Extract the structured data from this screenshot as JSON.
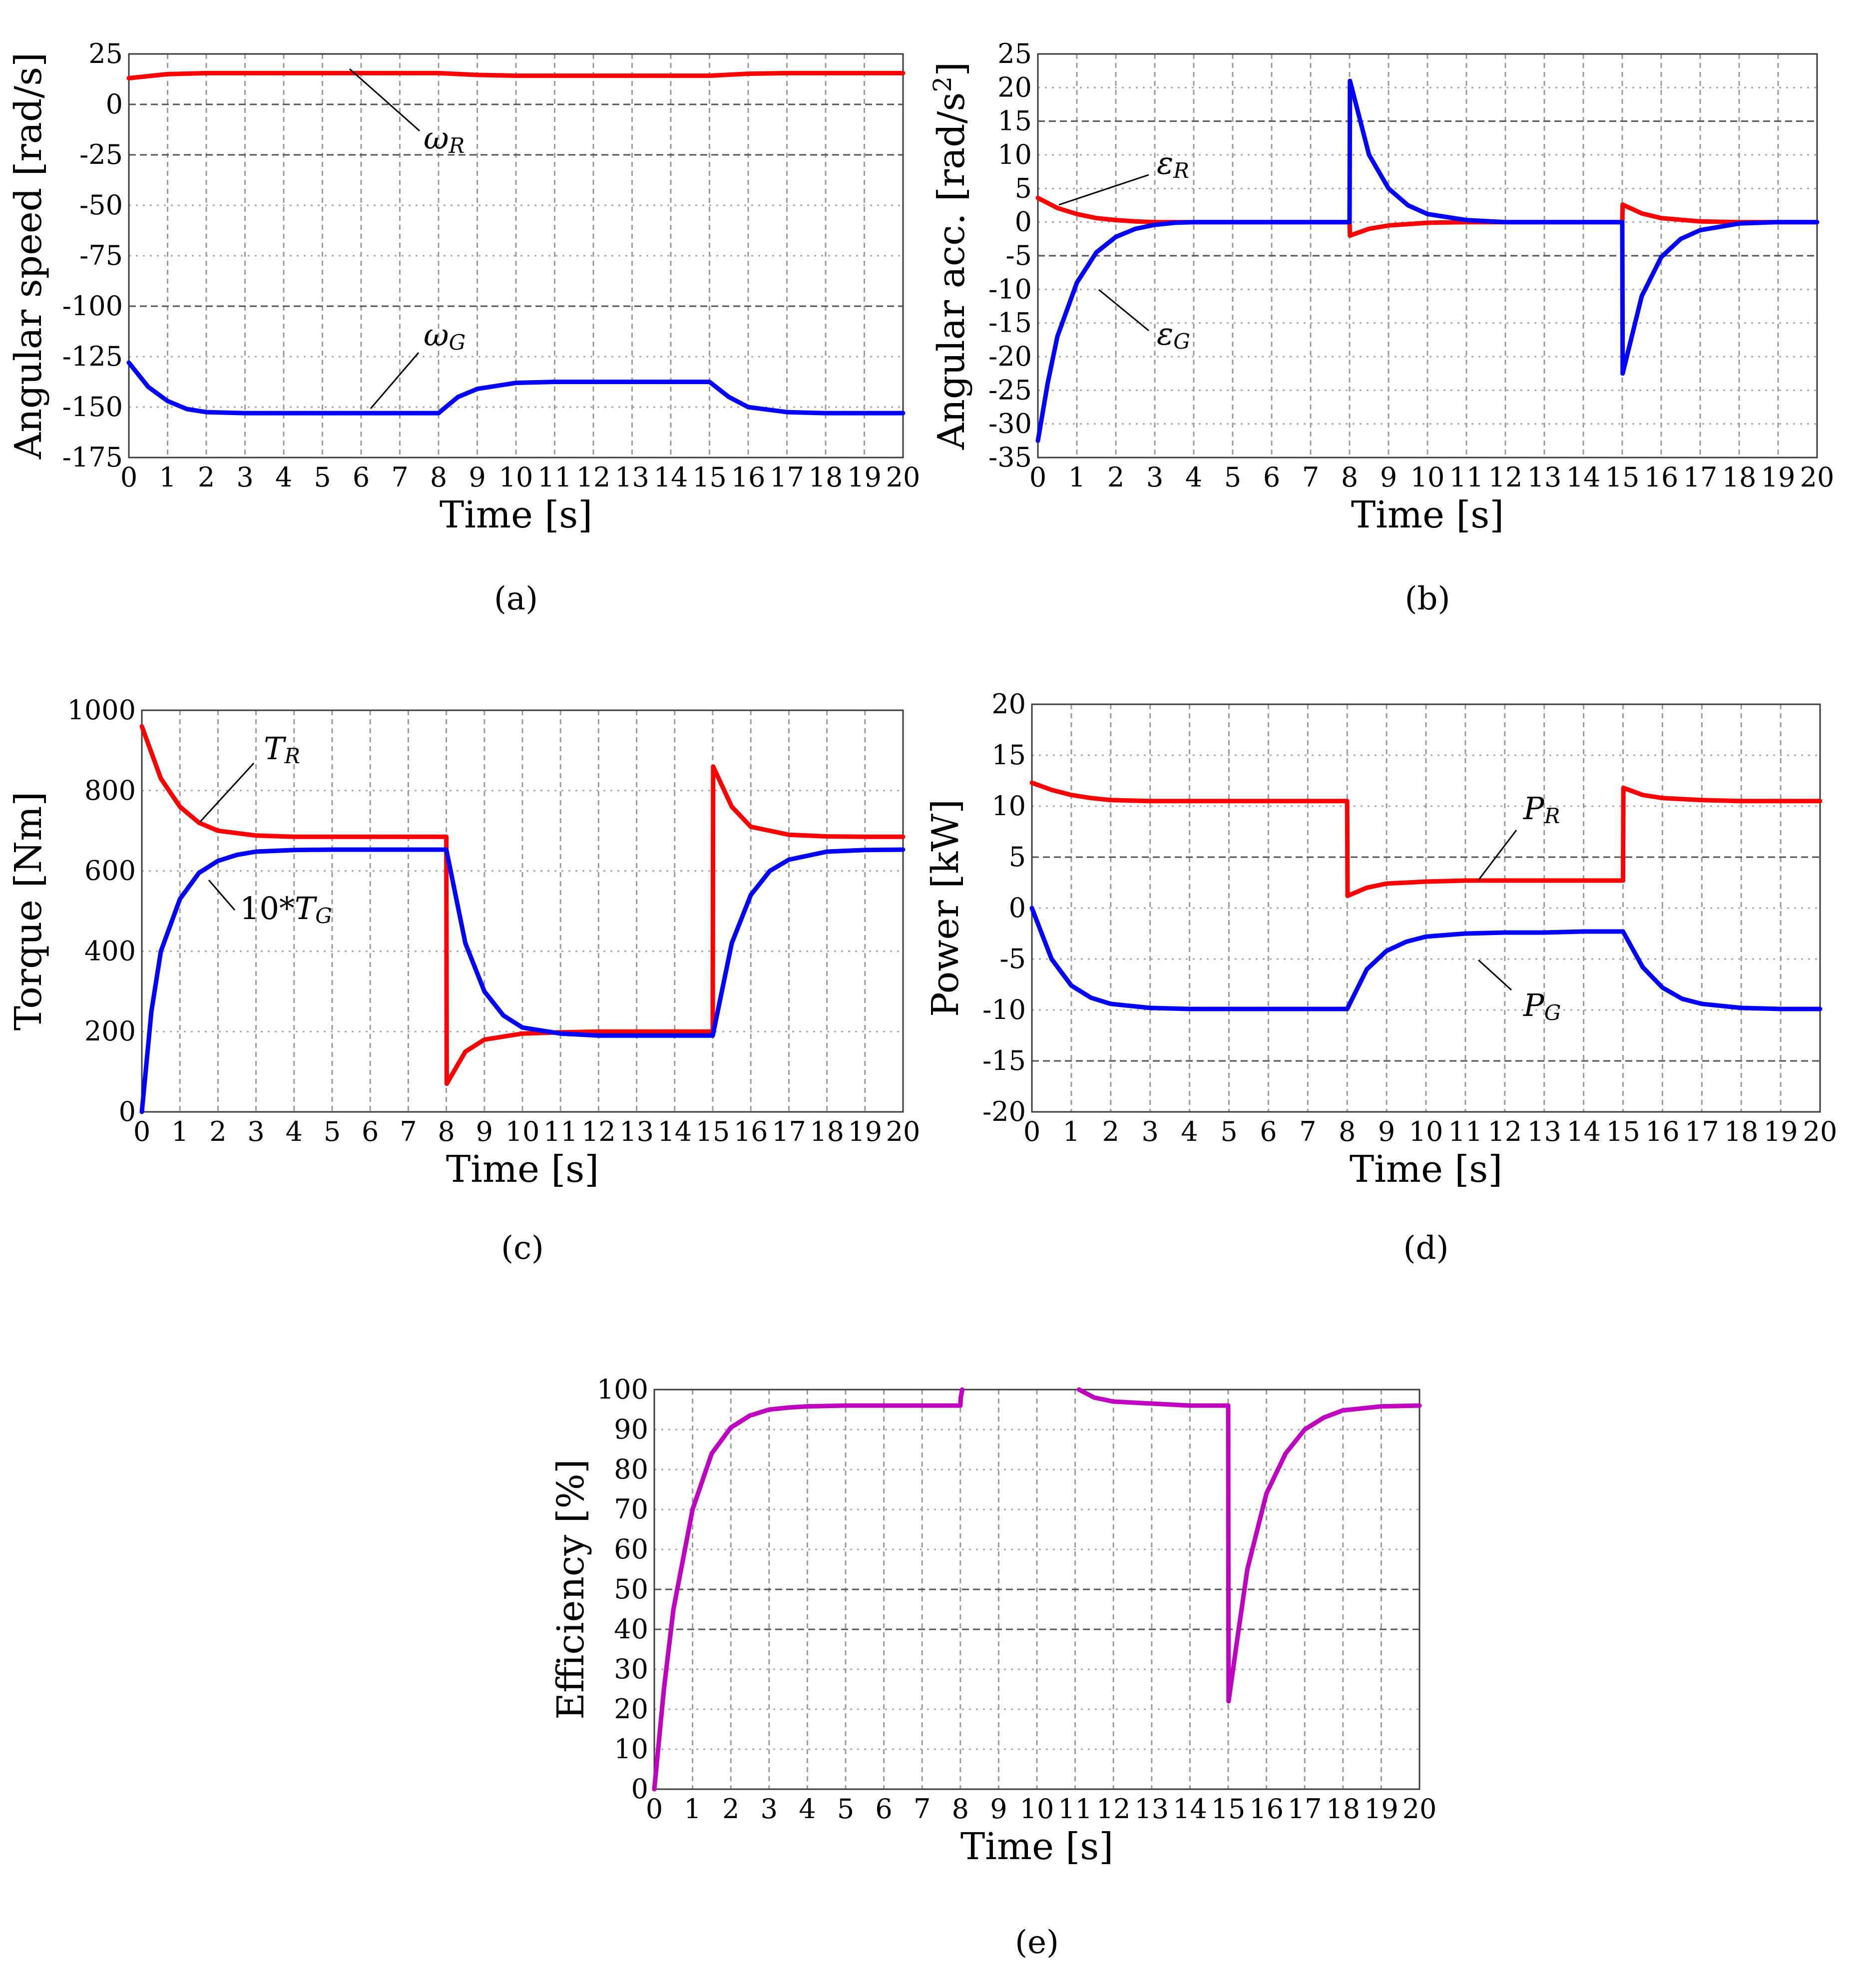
{
  "figure": {
    "panels": [
      "a",
      "b",
      "c",
      "d",
      "e"
    ]
  },
  "chart_data": [
    {
      "id": "a",
      "type": "line",
      "caption": "(a)",
      "xlabel": "Time [s]",
      "ylabel": "Angular speed [rad/s]",
      "xlim": [
        0,
        20
      ],
      "ylim": [
        -175,
        25
      ],
      "xticks": [
        0,
        1,
        2,
        3,
        4,
        5,
        6,
        7,
        8,
        9,
        10,
        11,
        12,
        13,
        14,
        15,
        16,
        17,
        18,
        19,
        20
      ],
      "yticks": [
        25,
        0,
        -25,
        -50,
        -75,
        -100,
        -125,
        -150,
        -175
      ],
      "grid": true,
      "series": [
        {
          "name": "ωR",
          "color": "#ff0000",
          "x": [
            0,
            1,
            2,
            3,
            4,
            5,
            6,
            7,
            8,
            9,
            10,
            11,
            12,
            13,
            14,
            15,
            16,
            17,
            18,
            19,
            20
          ],
          "y": [
            13,
            15,
            15.5,
            15.5,
            15.5,
            15.5,
            15.5,
            15.5,
            15.5,
            14.6,
            14.2,
            14.2,
            14.2,
            14.2,
            14.2,
            14.2,
            15.2,
            15.5,
            15.5,
            15.5,
            15.5
          ]
        },
        {
          "name": "ωG",
          "color": "#0000ff",
          "x": [
            0,
            0.5,
            1,
            1.5,
            2,
            3,
            4,
            5,
            6,
            7,
            8,
            8.5,
            9,
            10,
            11,
            12,
            13,
            14,
            15,
            15.5,
            16,
            17,
            18,
            19,
            20
          ],
          "y": [
            -128,
            -140,
            -147,
            -151,
            -152.5,
            -153,
            -153,
            -153,
            -153,
            -153,
            -153,
            -145,
            -141,
            -138,
            -137.5,
            -137.5,
            -137.5,
            -137.5,
            -137.5,
            -145,
            -150,
            -152.5,
            -153,
            -153,
            -153
          ]
        }
      ],
      "annotations": [
        {
          "main": "ω",
          "sub": "R"
        },
        {
          "main": "ω",
          "sub": "G"
        }
      ]
    },
    {
      "id": "b",
      "type": "line",
      "caption": "(b)",
      "xlabel": "Time [s]",
      "ylabel": "Angular acc. [rad/s",
      "ylabel_sup": "2",
      "ylabel_end": "]",
      "xlim": [
        0,
        20
      ],
      "ylim": [
        -35,
        25
      ],
      "xticks": [
        0,
        1,
        2,
        3,
        4,
        5,
        6,
        7,
        8,
        9,
        10,
        11,
        12,
        13,
        14,
        15,
        16,
        17,
        18,
        19,
        20
      ],
      "yticks": [
        25,
        20,
        15,
        10,
        5,
        0,
        -5,
        -10,
        -15,
        -20,
        -25,
        -30,
        -35
      ],
      "grid": true,
      "series": [
        {
          "name": "εR",
          "color": "#ff0000",
          "x": [
            0,
            0.5,
            1,
            1.5,
            2,
            2.5,
            3,
            8,
            8.01,
            8.5,
            9,
            10,
            11,
            15,
            15.01,
            15.5,
            16,
            17,
            18,
            20
          ],
          "y": [
            3.6,
            2.1,
            1.2,
            0.6,
            0.3,
            0.1,
            0,
            0,
            -2,
            -1,
            -0.5,
            -0.1,
            0,
            0,
            2.6,
            1.3,
            0.6,
            0.1,
            0,
            0
          ]
        },
        {
          "name": "εG",
          "color": "#0000ff",
          "x": [
            0,
            0.25,
            0.5,
            1,
            1.5,
            2,
            2.5,
            3,
            3.5,
            4,
            8,
            8.01,
            8.5,
            9,
            9.5,
            10,
            11,
            12,
            15,
            15.01,
            15.5,
            16,
            16.5,
            17,
            18,
            19,
            20
          ],
          "y": [
            -32.5,
            -24,
            -17,
            -9,
            -4.5,
            -2.2,
            -1,
            -0.4,
            -0.1,
            0,
            0,
            21,
            10,
            5,
            2.5,
            1.2,
            0.3,
            0,
            0,
            -22.5,
            -11,
            -5.2,
            -2.5,
            -1.2,
            -0.2,
            0,
            0
          ]
        }
      ],
      "annotations": [
        {
          "main": "ε",
          "sub": "R"
        },
        {
          "main": "ε",
          "sub": "G"
        }
      ]
    },
    {
      "id": "c",
      "type": "line",
      "caption": "(c)",
      "xlabel": "Time [s]",
      "ylabel": "Torque [Nm]",
      "xlim": [
        0,
        20
      ],
      "ylim": [
        0,
        1000
      ],
      "xticks": [
        0,
        1,
        2,
        3,
        4,
        5,
        6,
        7,
        8,
        9,
        10,
        11,
        12,
        13,
        14,
        15,
        16,
        17,
        18,
        19,
        20
      ],
      "yticks": [
        1000,
        800,
        600,
        400,
        200,
        0
      ],
      "grid": true,
      "series": [
        {
          "name": "TR",
          "color": "#ff0000",
          "x": [
            0,
            0.5,
            1,
            1.5,
            2,
            3,
            4,
            5,
            6,
            7,
            8,
            8.01,
            8.5,
            9,
            10,
            11,
            12,
            13,
            14,
            15,
            15.01,
            15.5,
            16,
            17,
            18,
            19,
            20
          ],
          "y": [
            960,
            830,
            760,
            720,
            700,
            688,
            685,
            685,
            685,
            685,
            685,
            70,
            150,
            180,
            195,
            198,
            200,
            200,
            200,
            200,
            860,
            760,
            710,
            690,
            686,
            685,
            685
          ]
        },
        {
          "name": "10*TG",
          "color": "#0000ff",
          "x": [
            0,
            0.25,
            0.5,
            1,
            1.5,
            2,
            2.5,
            3,
            4,
            5,
            6,
            7,
            8,
            8.5,
            9,
            9.5,
            10,
            11,
            12,
            13,
            14,
            15,
            15.5,
            16,
            16.5,
            17,
            18,
            19,
            20
          ],
          "y": [
            0,
            250,
            400,
            530,
            595,
            625,
            640,
            648,
            652,
            653,
            653,
            653,
            653,
            420,
            300,
            240,
            210,
            195,
            190,
            190,
            190,
            190,
            420,
            540,
            600,
            628,
            648,
            652,
            653
          ]
        }
      ],
      "annotations": [
        {
          "main": "T",
          "sub": "R",
          "prefix": ""
        },
        {
          "main": "T",
          "sub": "G",
          "prefix": "10*"
        }
      ]
    },
    {
      "id": "d",
      "type": "line",
      "caption": "(d)",
      "xlabel": "Time [s]",
      "ylabel": "Power [kW]",
      "xlim": [
        0,
        20
      ],
      "ylim": [
        -20,
        20
      ],
      "xticks": [
        0,
        1,
        2,
        3,
        4,
        5,
        6,
        7,
        8,
        9,
        10,
        11,
        12,
        13,
        14,
        15,
        16,
        17,
        18,
        19,
        20
      ],
      "yticks": [
        20,
        15,
        10,
        5,
        0,
        -5,
        -10,
        -15,
        -20
      ],
      "grid": true,
      "series": [
        {
          "name": "PR",
          "color": "#ff0000",
          "x": [
            0,
            0.5,
            1,
            1.5,
            2,
            3,
            4,
            5,
            6,
            7,
            8,
            8.01,
            8.5,
            9,
            10,
            11,
            12,
            13,
            14,
            15,
            15.01,
            15.5,
            16,
            17,
            18,
            19,
            20
          ],
          "y": [
            12.3,
            11.6,
            11.1,
            10.8,
            10.6,
            10.5,
            10.5,
            10.5,
            10.5,
            10.5,
            10.5,
            1.2,
            2,
            2.4,
            2.6,
            2.7,
            2.7,
            2.7,
            2.7,
            2.7,
            11.8,
            11.1,
            10.8,
            10.6,
            10.5,
            10.5,
            10.5
          ]
        },
        {
          "name": "PG",
          "color": "#0000ff",
          "x": [
            0,
            0.5,
            1,
            1.5,
            2,
            3,
            4,
            5,
            6,
            7,
            8,
            8.5,
            9,
            9.5,
            10,
            11,
            12,
            13,
            14,
            15,
            15.5,
            16,
            16.5,
            17,
            18,
            19,
            20
          ],
          "y": [
            0,
            -5,
            -7.6,
            -8.8,
            -9.4,
            -9.8,
            -9.9,
            -9.9,
            -9.9,
            -9.9,
            -9.9,
            -6,
            -4.2,
            -3.3,
            -2.8,
            -2.5,
            -2.4,
            -2.4,
            -2.3,
            -2.3,
            -5.8,
            -7.8,
            -8.9,
            -9.4,
            -9.8,
            -9.9,
            -9.9
          ]
        }
      ],
      "annotations": [
        {
          "main": "P",
          "sub": "R"
        },
        {
          "main": "P",
          "sub": "G"
        }
      ]
    },
    {
      "id": "e",
      "type": "line",
      "caption": "(e)",
      "xlabel": "Time [s]",
      "ylabel": "Efficiency [%]",
      "xlim": [
        0,
        20
      ],
      "ylim": [
        0,
        100
      ],
      "xticks": [
        0,
        1,
        2,
        3,
        4,
        5,
        6,
        7,
        8,
        9,
        10,
        11,
        12,
        13,
        14,
        15,
        16,
        17,
        18,
        19,
        20
      ],
      "yticks": [
        100,
        90,
        80,
        70,
        60,
        50,
        40,
        30,
        20,
        10,
        0
      ],
      "grid": true,
      "series": [
        {
          "name": "Efficiency",
          "color": "#c000c0",
          "segments": [
            {
              "x": [
                0,
                0.25,
                0.5,
                1,
                1.5,
                2,
                2.5,
                3,
                3.5,
                4,
                5,
                6,
                7,
                8,
                8.01,
                8.05
              ],
              "y": [
                0,
                25,
                45,
                70,
                84,
                90.5,
                93.5,
                95,
                95.5,
                95.8,
                96,
                96,
                96,
                96,
                98,
                100
              ]
            },
            {
              "x": [
                11.1,
                11.5,
                12,
                13,
                14,
                15,
                15.01,
                15.2,
                15.5,
                16,
                16.5,
                17,
                17.5,
                18,
                19,
                20
              ],
              "y": [
                100,
                98,
                97,
                96.5,
                96,
                96,
                22,
                35,
                55,
                74,
                84,
                90,
                93,
                94.8,
                95.8,
                96
              ]
            }
          ]
        }
      ]
    }
  ]
}
